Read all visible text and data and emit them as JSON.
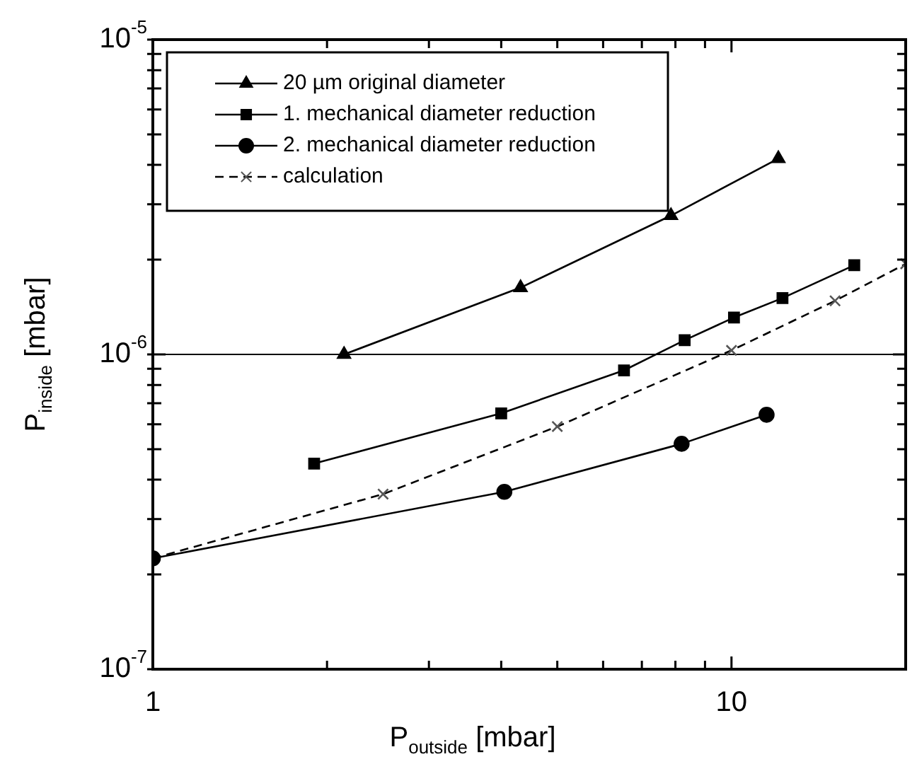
{
  "chart_data": {
    "type": "line",
    "xlabel": "P$_{outside}$ [mbar]",
    "ylabel": "P$_{inside}$ [mbar]",
    "log": "xy",
    "grid": false,
    "legend": "top left",
    "xlim": [
      1,
      20
    ],
    "ylim": [
      1e-07,
      1e-05
    ],
    "xticks": [
      1,
      {
        "value": 2,
        "label": null
      },
      {
        "value": 3,
        "label": null
      },
      {
        "value": 4,
        "label": null
      },
      {
        "value": 5,
        "label": null
      },
      {
        "value": 6,
        "label": null
      },
      {
        "value": 7,
        "label": null
      },
      {
        "value": 8,
        "label": null
      },
      {
        "value": 9,
        "label": null
      },
      10,
      {
        "value": 20,
        "label": null
      }
    ],
    "yticks": [
      {
        "value": 1e-07,
        "label": "10$^{-7}$"
      },
      {
        "value": 2e-07,
        "label": null
      },
      {
        "value": 3e-07,
        "label": null
      },
      {
        "value": 4e-07,
        "label": null
      },
      {
        "value": 5e-07,
        "label": null
      },
      {
        "value": 6e-07,
        "label": null
      },
      {
        "value": 7e-07,
        "label": null
      },
      {
        "value": 8e-07,
        "label": null
      },
      {
        "value": 9e-07,
        "label": null
      },
      {
        "value": 1e-06,
        "label": "10$^{-6}$"
      },
      {
        "value": 2e-06,
        "label": null
      },
      {
        "value": 3e-06,
        "label": null
      },
      {
        "value": 4e-06,
        "label": null
      },
      {
        "value": 5e-06,
        "label": null
      },
      {
        "value": 6e-06,
        "label": null
      },
      {
        "value": 7e-06,
        "label": null
      },
      {
        "value": 8e-06,
        "label": null
      },
      {
        "value": 9e-06,
        "label": null
      },
      {
        "value": 1e-05,
        "label": "10$^{-5}$"
      }
    ],
    "ref_lines": [
      {
        "axis": "y",
        "value": 1e-06,
        "color": "#000000"
      }
    ],
    "series": [
      {
        "name": "20 µm original diameter",
        "color": "#000000",
        "marker": "triangle",
        "line_style": "solid",
        "x": [
          2.14,
          4.32,
          7.86,
          12.05
        ],
        "values": [
          1e-06,
          1.63e-06,
          2.76e-06,
          4.19e-06
        ]
      },
      {
        "name": "1. mechanical diameter reduction",
        "color": "#000000",
        "marker": "square",
        "line_style": "solid",
        "x": [
          1.9,
          4.0,
          6.52,
          8.3,
          10.1,
          12.25,
          16.3
        ],
        "values": [
          4.5e-07,
          6.5e-07,
          8.9e-07,
          1.11e-06,
          1.31e-06,
          1.51e-06,
          1.92e-06
        ]
      },
      {
        "name": "2. mechanical diameter reduction",
        "color": "#000000",
        "marker": "circle",
        "line_style": "solid",
        "x": [
          1,
          4.05,
          8.2,
          11.5
        ],
        "values": [
          2.25e-07,
          3.66e-07,
          5.2e-07,
          6.43e-07
        ]
      },
      {
        "name": "calculation",
        "color": "#000000",
        "marker": "cross",
        "line_style": "dashed",
        "x": [
          1,
          2.5,
          5,
          10,
          15.1,
          20
        ],
        "values": [
          2.25e-07,
          3.6e-07,
          5.9e-07,
          1.03e-06,
          1.48e-06,
          1.94e-06
        ]
      }
    ]
  }
}
